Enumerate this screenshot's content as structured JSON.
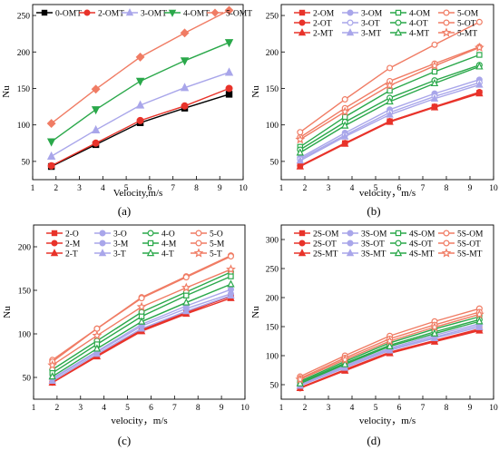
{
  "figure": {
    "colors": {
      "black": "#000000",
      "red": "#e8332a",
      "lavender": "#a9a6ea",
      "green": "#2aa84a",
      "salmon": "#f07c64",
      "lightred": "#ef5d5d"
    }
  },
  "chart_data": [
    {
      "panel_label": "(a)",
      "type": "line",
      "xlabel": "Velocity,m/s",
      "ylabel": "Nu",
      "xlim": [
        1,
        10
      ],
      "ylim": [
        25,
        265
      ],
      "xticks": [
        "1",
        "2",
        "3",
        "4",
        "5",
        "6",
        "7",
        "8",
        "9",
        "10"
      ],
      "yticks": [
        "50",
        "100",
        "150",
        "200",
        "250"
      ],
      "legend_position": "top",
      "legend_columns": 5,
      "x": [
        1.8,
        3.7,
        5.6,
        7.5,
        9.4
      ],
      "series": [
        {
          "name": "0-OMT",
          "color": "#000000",
          "marker": "square",
          "filled": true,
          "values": [
            43,
            73,
            103,
            123,
            142
          ]
        },
        {
          "name": "2-OMT",
          "color": "#e8332a",
          "marker": "circle",
          "filled": true,
          "values": [
            44,
            75,
            106,
            126,
            150
          ]
        },
        {
          "name": "3-OMT",
          "color": "#a9a6ea",
          "marker": "triangle",
          "filled": true,
          "values": [
            57,
            93,
            127,
            151,
            172
          ]
        },
        {
          "name": "4-OMT",
          "color": "#2aa84a",
          "marker": "triangle-down",
          "filled": true,
          "values": [
            77,
            121,
            160,
            188,
            213
          ]
        },
        {
          "name": "5-OMT",
          "color": "#f07c64",
          "marker": "diamond",
          "filled": true,
          "values": [
            102,
            149,
            193,
            226,
            257
          ]
        }
      ]
    },
    {
      "panel_label": "(b)",
      "type": "line",
      "xlabel": "velocity，m/s",
      "ylabel": "Nu",
      "xlim": [
        1,
        10
      ],
      "ylim": [
        25,
        265
      ],
      "xticks": [
        "1",
        "2",
        "3",
        "4",
        "5",
        "6",
        "7",
        "8",
        "9",
        "10"
      ],
      "yticks": [
        "50",
        "100",
        "150",
        "200",
        "250"
      ],
      "legend_position": "top",
      "legend_columns": 4,
      "x": [
        1.8,
        3.7,
        5.6,
        7.5,
        9.4
      ],
      "series": [
        {
          "name": "2-OM",
          "color": "#e8332a",
          "marker": "square",
          "filled": true,
          "values": [
            44,
            75,
            105,
            125,
            144
          ]
        },
        {
          "name": "3-OM",
          "color": "#a9a6ea",
          "marker": "circle",
          "filled": true,
          "values": [
            55,
            89,
            121,
            143,
            162
          ]
        },
        {
          "name": "4-OM",
          "color": "#2aa84a",
          "marker": "square",
          "filled": false,
          "values": [
            70,
            111,
            147,
            173,
            196
          ]
        },
        {
          "name": "5-OM",
          "color": "#f07c64",
          "marker": "circle",
          "filled": false,
          "values": [
            90,
            135,
            178,
            210,
            241
          ]
        },
        {
          "name": "2-OT",
          "color": "#e8332a",
          "marker": "circle",
          "filled": true,
          "values": [
            44,
            75,
            105,
            125,
            145
          ]
        },
        {
          "name": "3-OT",
          "color": "#a9a6ea",
          "marker": "circle",
          "filled": false,
          "values": [
            53,
            86,
            117,
            139,
            158
          ]
        },
        {
          "name": "4-OT",
          "color": "#2aa84a",
          "marker": "circle",
          "filled": false,
          "values": [
            66,
            104,
            137,
            161,
            182
          ]
        },
        {
          "name": "5-OT",
          "color": "#f07c64",
          "marker": "circle",
          "filled": false,
          "values": [
            83,
            123,
            160,
            184,
            207
          ]
        },
        {
          "name": "2-MT",
          "color": "#e8332a",
          "marker": "triangle",
          "filled": true,
          "values": [
            43,
            74,
            104,
            124,
            143
          ]
        },
        {
          "name": "3-MT",
          "color": "#a9a6ea",
          "marker": "triangle",
          "filled": true,
          "values": [
            51,
            84,
            114,
            136,
            155
          ]
        },
        {
          "name": "4-MT",
          "color": "#2aa84a",
          "marker": "triangle",
          "filled": false,
          "values": [
            62,
            99,
            132,
            157,
            180
          ]
        },
        {
          "name": "5-MT",
          "color": "#f07c64",
          "marker": "star",
          "filled": false,
          "values": [
            80,
            118,
            154,
            181,
            206
          ]
        }
      ]
    },
    {
      "panel_label": "(c)",
      "type": "line",
      "xlabel": "velocity，m/s",
      "ylabel": "Nu",
      "xlim": [
        1,
        10
      ],
      "ylim": [
        25,
        225
      ],
      "xticks": [
        "1",
        "2",
        "3",
        "4",
        "5",
        "6",
        "7",
        "8",
        "9",
        "10"
      ],
      "yticks": [
        "50",
        "100",
        "150",
        "200"
      ],
      "legend_position": "top",
      "legend_columns": 4,
      "x": [
        1.8,
        3.7,
        5.6,
        7.5,
        9.4
      ],
      "series": [
        {
          "name": "2-O",
          "color": "#e8332a",
          "marker": "square",
          "filled": true,
          "values": [
            44,
            75,
            105,
            125,
            143
          ]
        },
        {
          "name": "3-O",
          "color": "#a9a6ea",
          "marker": "circle",
          "filled": true,
          "values": [
            49,
            80,
            111,
            132,
            151
          ]
        },
        {
          "name": "4-O",
          "color": "#2aa84a",
          "marker": "circle",
          "filled": false,
          "values": [
            59,
            92,
            125,
            148,
            171
          ]
        },
        {
          "name": "5-O",
          "color": "#f07c64",
          "marker": "circle",
          "filled": false,
          "values": [
            70,
            106,
            142,
            166,
            190
          ]
        },
        {
          "name": "2-M",
          "color": "#e8332a",
          "marker": "circle",
          "filled": true,
          "values": [
            44,
            75,
            104,
            124,
            144
          ]
        },
        {
          "name": "3-M",
          "color": "#a9a6ea",
          "marker": "circle",
          "filled": true,
          "values": [
            48,
            79,
            109,
            129,
            146
          ]
        },
        {
          "name": "4-M",
          "color": "#2aa84a",
          "marker": "square",
          "filled": false,
          "values": [
            55,
            88,
            120,
            144,
            166
          ]
        },
        {
          "name": "5-M",
          "color": "#f07c64",
          "marker": "circle",
          "filled": false,
          "values": [
            68,
            106,
            141,
            165,
            189
          ]
        },
        {
          "name": "2-T",
          "color": "#e8332a",
          "marker": "triangle",
          "filled": true,
          "values": [
            44,
            74,
            103,
            123,
            141
          ]
        },
        {
          "name": "3-T",
          "color": "#a9a6ea",
          "marker": "triangle",
          "filled": true,
          "values": [
            46,
            77,
            106,
            126,
            144
          ]
        },
        {
          "name": "4-T",
          "color": "#2aa84a",
          "marker": "triangle",
          "filled": false,
          "values": [
            51,
            83,
            114,
            136,
            157
          ]
        },
        {
          "name": "5-T",
          "color": "#f07c64",
          "marker": "star",
          "filled": false,
          "values": [
            64,
            98,
            131,
            153,
            174
          ]
        }
      ]
    },
    {
      "panel_label": "(d)",
      "type": "line",
      "xlabel": "velocity，m/s",
      "ylabel": "Nu",
      "xlim": [
        1,
        10
      ],
      "ylim": [
        25,
        325
      ],
      "xticks": [
        "1",
        "2",
        "3",
        "4",
        "5",
        "6",
        "7",
        "8",
        "9",
        "10"
      ],
      "yticks": [
        "50",
        "100",
        "150",
        "200",
        "250",
        "300"
      ],
      "legend_position": "top",
      "legend_columns": 4,
      "x": [
        1.8,
        3.7,
        5.6,
        7.5,
        9.4
      ],
      "series": [
        {
          "name": "2S-OM",
          "color": "#e8332a",
          "marker": "square",
          "filled": true,
          "values": [
            45,
            76,
            106,
            126,
            146
          ]
        },
        {
          "name": "3S-OM",
          "color": "#a9a6ea",
          "marker": "circle",
          "filled": true,
          "values": [
            50,
            83,
            113,
            135,
            155
          ]
        },
        {
          "name": "4S-OM",
          "color": "#2aa84a",
          "marker": "square",
          "filled": false,
          "values": [
            56,
            90,
            122,
            146,
            167
          ]
        },
        {
          "name": "5S-OM",
          "color": "#f07c64",
          "marker": "circle",
          "filled": false,
          "values": [
            64,
            100,
            134,
            159,
            181
          ]
        },
        {
          "name": "2S-OT",
          "color": "#e8332a",
          "marker": "circle",
          "filled": true,
          "values": [
            44,
            75,
            105,
            125,
            144
          ]
        },
        {
          "name": "3S-OT",
          "color": "#a9a6ea",
          "marker": "circle",
          "filled": true,
          "values": [
            49,
            81,
            111,
            132,
            152
          ]
        },
        {
          "name": "4S-OT",
          "color": "#2aa84a",
          "marker": "circle",
          "filled": false,
          "values": [
            54,
            87,
            118,
            141,
            162
          ]
        },
        {
          "name": "5S-OT",
          "color": "#f07c64",
          "marker": "circle",
          "filled": false,
          "values": [
            61,
            96,
            129,
            153,
            175
          ]
        },
        {
          "name": "2S-MT",
          "color": "#e8332a",
          "marker": "triangle",
          "filled": true,
          "values": [
            44,
            74,
            104,
            124,
            143
          ]
        },
        {
          "name": "3S-MT",
          "color": "#a9a6ea",
          "marker": "triangle",
          "filled": true,
          "values": [
            48,
            79,
            109,
            130,
            149
          ]
        },
        {
          "name": "4S-MT",
          "color": "#2aa84a",
          "marker": "triangle",
          "filled": false,
          "values": [
            52,
            85,
            116,
            138,
            159
          ]
        },
        {
          "name": "5S-MT",
          "color": "#f07c64",
          "marker": "star",
          "filled": false,
          "values": [
            59,
            93,
            125,
            149,
            171
          ]
        }
      ]
    }
  ]
}
